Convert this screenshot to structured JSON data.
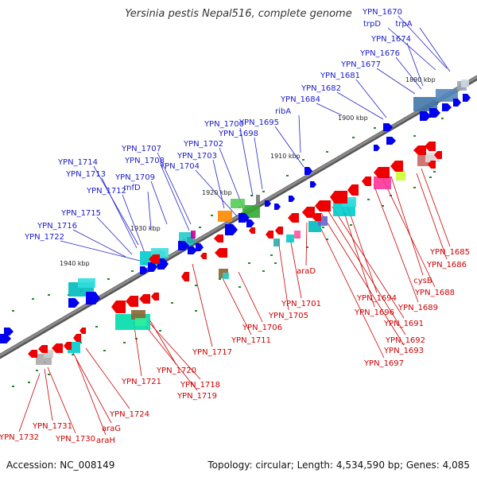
{
  "title": "Yersinia pestis Nepal516, complete genome",
  "footer": {
    "accession": "Accession: NC_008149",
    "topology": "Topology: circular; Length: 4,534,590 bp; Genes: 4,085"
  },
  "colors": {
    "forward_label": "#1a1acc",
    "reverse_label": "#cc0000",
    "backbone": "#8a8a8a"
  },
  "kbp_ticks": [
    "1890 kbp",
    "1900 kbp",
    "1910 kbp",
    "1920 kbp",
    "1930 kbp",
    "1940 kbp"
  ],
  "forward_labels": [
    "YPN_1670",
    "trpD",
    "trpA",
    "YPN_1674",
    "YPN_1676",
    "YPN_1677",
    "YPN_1681",
    "YPN_1682",
    "YPN_1684",
    "ribA",
    "YPN_1695",
    "YPN_1700",
    "YPN_1698",
    "YPN_1702",
    "YPN_1703",
    "YPN_1704",
    "YPN_1707",
    "YPN_1708",
    "YPN_1709",
    "rnfD",
    "YPN_1714",
    "YPN_1713",
    "YPN_1712",
    "YPN_1715",
    "YPN_1716",
    "YPN_1722"
  ],
  "reverse_labels": [
    "YPN_1685",
    "YPN_1686",
    "cysB",
    "YPN_1688",
    "YPN_1689",
    "YPN_1694",
    "YPN_1696",
    "YPN_1691",
    "YPN_1692",
    "YPN_1693",
    "YPN_1697",
    "araD",
    "YPN_1701",
    "YPN_1705",
    "YPN_1706",
    "YPN_1711",
    "YPN_1717",
    "YPN_1720",
    "YPN_1718",
    "YPN_1719",
    "YPN_1721",
    "YPN_1724",
    "araG",
    "araH",
    "YPN_1730",
    "YPN_1731",
    "YPN_1732"
  ]
}
